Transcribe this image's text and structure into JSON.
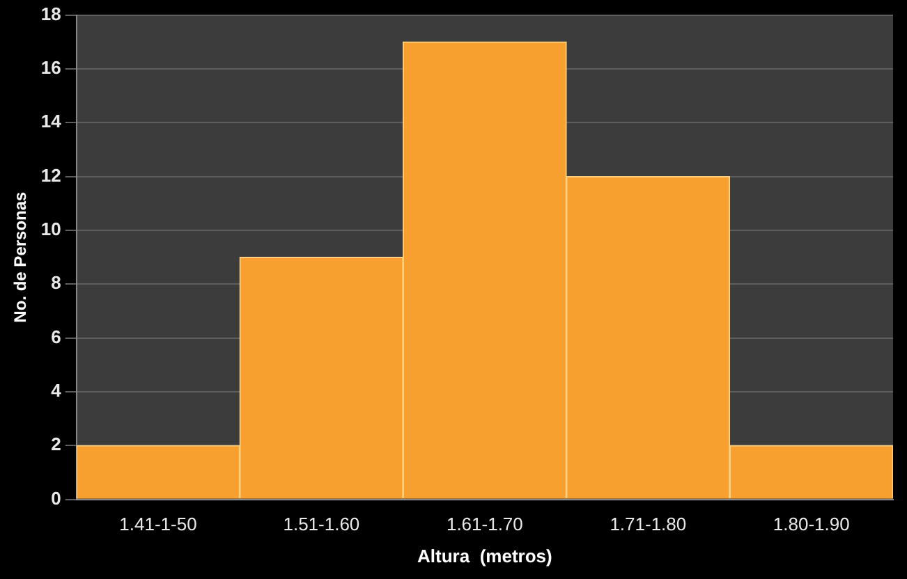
{
  "chart_data": {
    "type": "bar",
    "xlabel": "Altura  (metros)",
    "ylabel": "No. de Personas",
    "categories": [
      "1.41-1-50",
      "1.51-1.60",
      "1.61-1.70",
      "1.71-1.80",
      "1.80-1.90"
    ],
    "values": [
      2,
      9,
      17,
      12,
      2
    ],
    "color": "#f7a030",
    "ylim": [
      0,
      18
    ],
    "yticks": [
      0,
      2,
      4,
      6,
      8,
      10,
      12,
      14,
      16,
      18
    ],
    "grid": "y"
  }
}
